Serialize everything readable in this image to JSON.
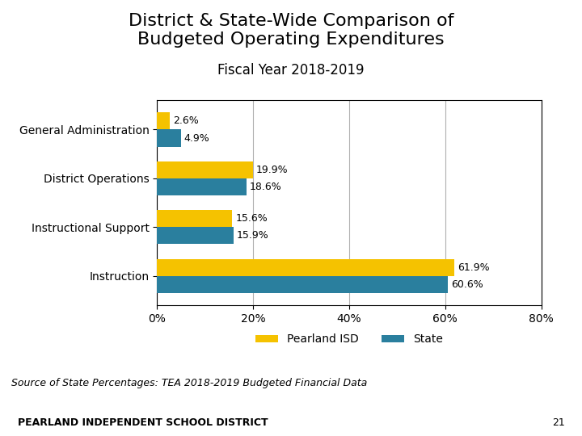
{
  "chart_data": {
    "type": "bar",
    "orientation": "horizontal",
    "title": "District & State-Wide Comparison of\nBudgeted Operating Expenditures",
    "subtitle": "Fiscal Year 2018-2019",
    "categories": [
      "Instruction",
      "Instructional Support",
      "District Operations",
      "General Administration"
    ],
    "series": [
      {
        "name": "Pearland ISD",
        "color": "#F5C200",
        "values": [
          61.9,
          15.6,
          19.9,
          2.6
        ],
        "value_labels": [
          "61.9%",
          "15.6%",
          "19.9%",
          "2.6%"
        ]
      },
      {
        "name": "State",
        "color": "#2A7F9E",
        "values": [
          60.6,
          15.9,
          18.6,
          4.9
        ],
        "value_labels": [
          "60.6%",
          "15.9%",
          "18.6%",
          "4.9%"
        ]
      }
    ],
    "xlim": [
      0,
      80
    ],
    "xticks": [
      {
        "value": 0,
        "label": "0%"
      },
      {
        "value": 20,
        "label": "20%"
      },
      {
        "value": 40,
        "label": "40%"
      },
      {
        "value": 60,
        "label": "60%"
      },
      {
        "value": 80,
        "label": "80%"
      }
    ],
    "grid": true,
    "legend": "upper center",
    "data_labels": true,
    "annotations": [
      "Source of State Percentages: TEA 2018-2019 Budgeted Financial Data",
      "PEARLAND INDEPENDENT SCHOOL DISTRICT",
      "21"
    ]
  }
}
